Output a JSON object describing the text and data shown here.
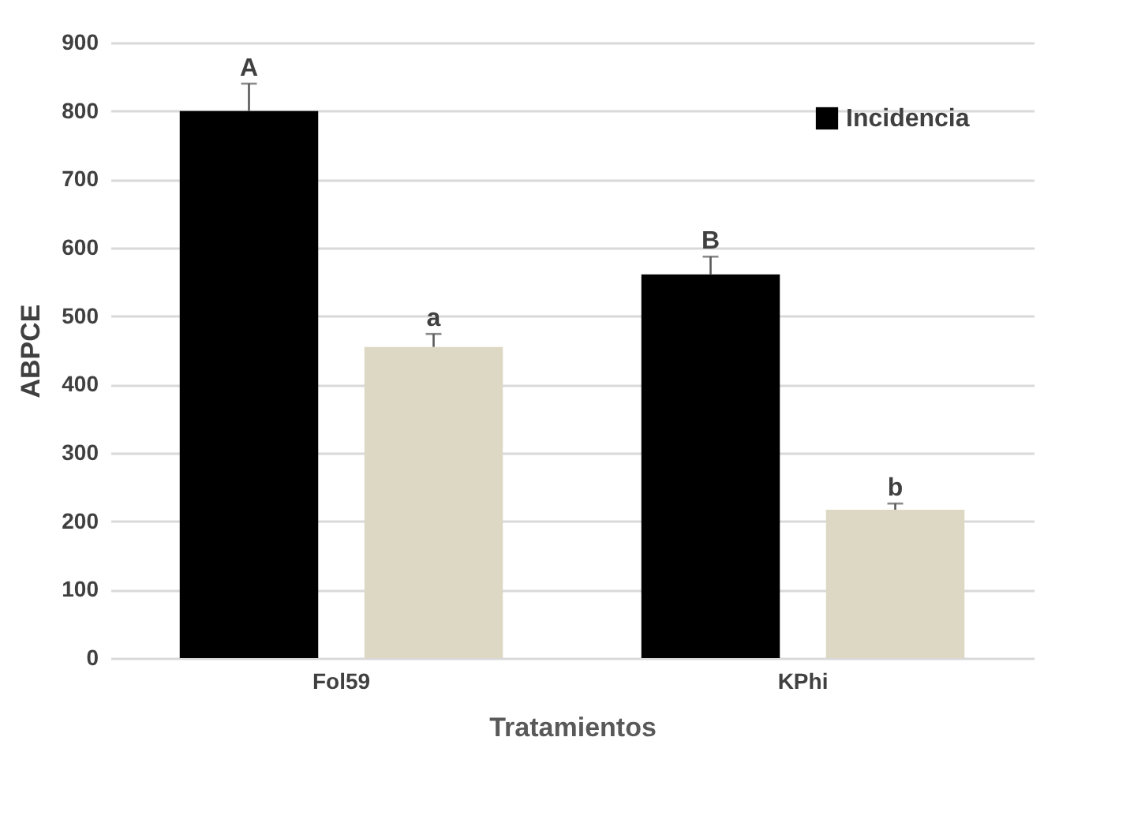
{
  "chart_data": {
    "type": "bar",
    "xlabel": "Tratamientos",
    "ylabel": "ABPCE",
    "categories": [
      "Fol59",
      "KPhi"
    ],
    "series": [
      {
        "name": "Incidencia",
        "color": "#000000",
        "values": [
          800,
          561
        ],
        "errors": [
          [
            800,
            840
          ],
          [
            561,
            587
          ]
        ]
      },
      {
        "color": "#ddd8c4",
        "values": [
          455,
          217
        ],
        "errors": [
          [
            455,
            474
          ],
          [
            217,
            226
          ]
        ]
      }
    ],
    "ylim": [
      0,
      900
    ],
    "yticks": [
      0,
      100,
      200,
      300,
      400,
      500,
      600,
      700,
      800,
      900
    ],
    "grid": "y",
    "legend": "top right",
    "annotations": [
      "A",
      "a",
      "B",
      "b"
    ]
  }
}
